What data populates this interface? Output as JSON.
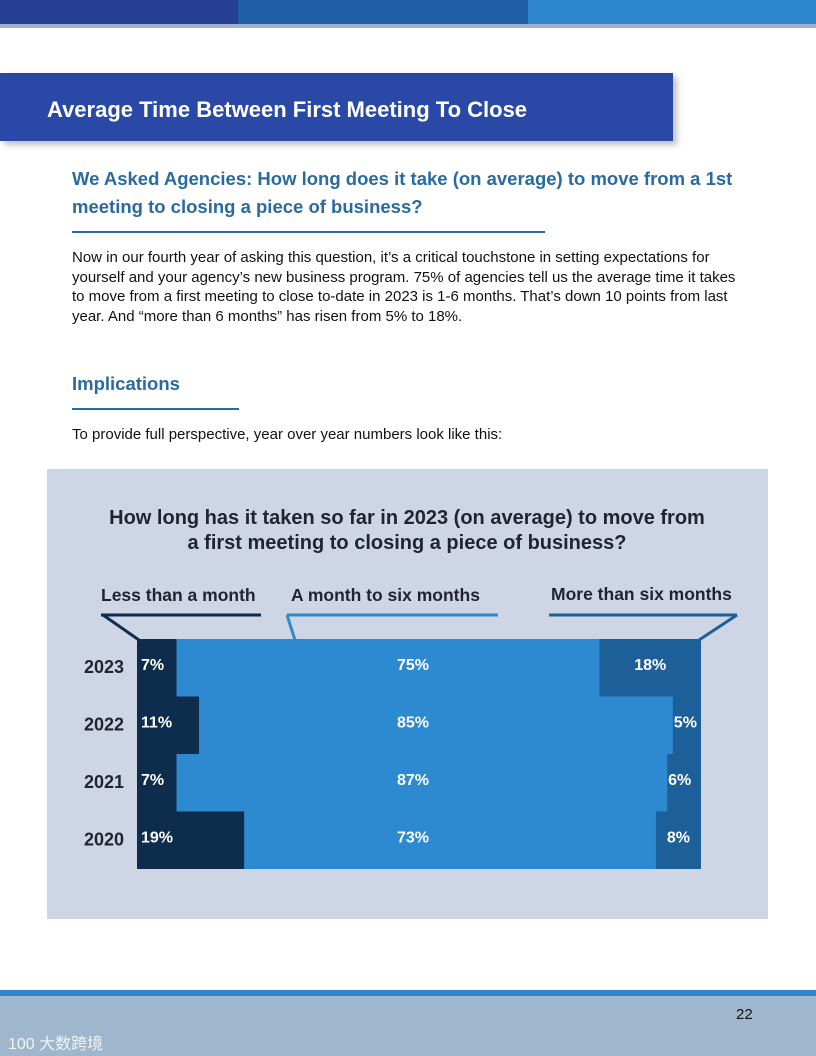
{
  "header": {
    "title": "Average Time Between First Meeting To Close",
    "colors": [
      "#263f94",
      "#2060a8",
      "#2e86cc"
    ]
  },
  "intro": {
    "question": "We Asked Agencies: How long does it take (on average) to move from a 1st meeting to closing a piece of business?",
    "paragraph": "Now in our fourth year of asking this question, it’s a critical touchstone in setting expectations for yourself and your agency’s new business program. 75% of agencies tell us the average time it takes to move from a first meeting to close to-date in 2023 is 1-6 months. That’s down 10 points from last year.  And “more than 6 months” has risen from 5% to 18%."
  },
  "implications": {
    "heading": "Implications",
    "lead": "To provide full perspective, year over year numbers look like this:"
  },
  "chart_data": {
    "type": "bar",
    "orientation": "horizontal",
    "stacked": true,
    "title": "How long has it taken so far in 2023 (on average) to move from a first meeting  to closing a piece of business?",
    "categories": [
      "2023",
      "2022",
      "2021",
      "2020"
    ],
    "series": [
      {
        "name": "Less than a month",
        "values": [
          7,
          11,
          7,
          19
        ],
        "labels": [
          "7%",
          "11%",
          "7%",
          "19%"
        ],
        "color": "#0e2c4c"
      },
      {
        "name": "A month to six months",
        "values": [
          75,
          85,
          87,
          73
        ],
        "labels": [
          "75%",
          "85%",
          "87%",
          "73%"
        ],
        "color": "#2e8ad0"
      },
      {
        "name": "More than six months",
        "values": [
          18,
          5,
          6,
          8
        ],
        "labels": [
          "18%",
          "5%",
          "6%",
          "8%"
        ],
        "color": "#1d5f99"
      }
    ],
    "xlim": [
      0,
      100
    ],
    "legend": "top"
  },
  "footer": {
    "page_number": "22",
    "watermark": "100 大数跨境"
  }
}
